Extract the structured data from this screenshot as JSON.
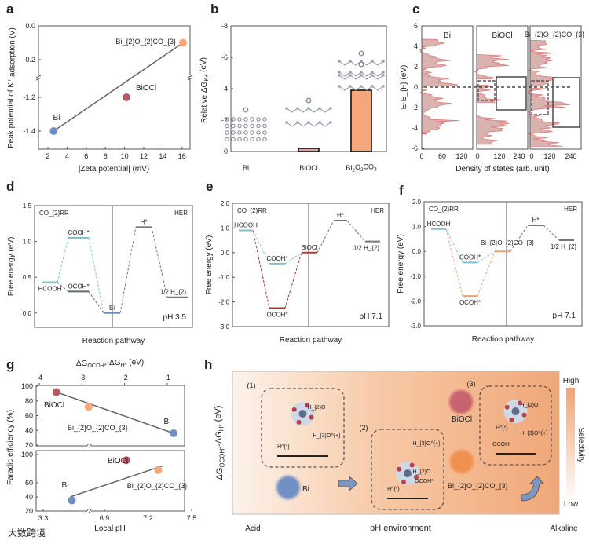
{
  "panel_labels": [
    "a",
    "b",
    "c",
    "d",
    "e",
    "f",
    "g",
    "h"
  ],
  "watermark": "大数跨境",
  "colors": {
    "Bi": "#6f8fc4",
    "BiOCl": "#b85a66",
    "Bi2O2CO3": "#f5a77a",
    "teal": "#7fc3d0",
    "red": "#b0302f",
    "orange": "#f0a070",
    "gray": "#666666",
    "accent": "#f2a777"
  },
  "chart_data": [
    {
      "id": "a",
      "type": "scatter",
      "xlabel": "|Zeta potential| (mV)",
      "ylabel": "Peak potential of K^{+} adsorption (V)",
      "xlim": [
        1,
        17
      ],
      "xticks": [
        2,
        4,
        6,
        8,
        10,
        12,
        14,
        16
      ],
      "ylim": [
        -1.5,
        0.0
      ],
      "yticks": [
        "0.0",
        "-0.2",
        "-1.2",
        "-1.4"
      ],
      "y_axis_break": [
        -0.3,
        -1.1
      ],
      "points": [
        {
          "label": "Bi",
          "x": 2.6,
          "y": -1.4
        },
        {
          "label": "BiOCl",
          "x": 10.2,
          "y": -1.2
        },
        {
          "label": "Bi_{2}O_{2}CO_{3}",
          "x": 16.1,
          "y": -0.1
        }
      ],
      "fit_line": [
        [
          2.6,
          -1.4
        ],
        [
          16.1,
          -0.1
        ]
      ]
    },
    {
      "id": "b",
      "type": "bar",
      "ylabel": "Relative ΔG_{K+} (eV)",
      "ylim": [
        0,
        -8
      ],
      "yticks": [
        "0",
        "-2",
        "-4",
        "-6",
        "-8"
      ],
      "categories": [
        "Bi",
        "BiOCl",
        "Bi_{2}O_{2}CO_{3}"
      ],
      "values": [
        0,
        -0.2,
        -3.9
      ]
    },
    {
      "id": "c",
      "type": "area",
      "ylabel": "E-E_{F} (eV)",
      "xlabel": "Density of states (arb. unit)",
      "ylim": [
        -6,
        6
      ],
      "yticks": [
        "-6",
        "-4",
        "-2",
        "0",
        "2",
        "4",
        "6"
      ],
      "subplots": [
        {
          "title": "Bi",
          "xticks": [
            "0",
            "60",
            "120"
          ],
          "bands": [
            [
              -4.6,
              -0.2
            ],
            [
              0.1,
              4.7
            ]
          ]
        },
        {
          "title": "BiOCl",
          "xticks": [
            "0",
            "120",
            "240"
          ],
          "bands": [
            [
              -5.6,
              -2.8
            ],
            [
              -1.5,
              0.2
            ],
            [
              0.8,
              3.2
            ]
          ]
        },
        {
          "title": "Bi_{2}O_{2}CO_{3}",
          "xticks": [
            "0",
            "120",
            "240"
          ],
          "bands": [
            [
              -5.8,
              -0.1
            ],
            [
              0.1,
              4.6
            ]
          ]
        }
      ]
    },
    {
      "id": "d",
      "type": "line",
      "xlabel": "Reaction pathway",
      "ylabel": "Free energy (eV)",
      "ylim": [
        -0.2,
        1.5
      ],
      "yticks": [
        "0.0",
        "0.5",
        "1.0",
        "1.5"
      ],
      "left_title": "CO_{2}RR",
      "right_title": "HER",
      "note": "pH 3.5",
      "levels": [
        {
          "label": "HCOOH",
          "value": 0.43,
          "step": 0
        },
        {
          "label": "COOH*",
          "value": 1.05,
          "step": 1
        },
        {
          "label": "OCOH*",
          "value": 0.3,
          "step": 1
        },
        {
          "label": "Bi",
          "value": 0.0,
          "step": 2
        },
        {
          "label": "H*",
          "value": 1.2,
          "step": 3
        },
        {
          "label": "1/2 H_{2}",
          "value": 0.22,
          "step": 4
        }
      ]
    },
    {
      "id": "e",
      "type": "line",
      "xlabel": "Reaction pathway",
      "ylabel": "Free energy (eV)",
      "ylim": [
        -3.0,
        2.0
      ],
      "yticks": [
        "-3.0",
        "-2.0",
        "-1.0",
        "0.0",
        "1.0",
        "2.0"
      ],
      "left_title": "CO_{2}RR",
      "right_title": "HER",
      "note": "pH 7.1",
      "levels": [
        {
          "label": "HCOOH",
          "value": 0.9,
          "step": 0
        },
        {
          "label": "COOH*",
          "value": -0.45,
          "step": 1
        },
        {
          "label": "OCOH*",
          "value": -2.25,
          "step": 1
        },
        {
          "label": "BiOCl",
          "value": 0.0,
          "step": 2
        },
        {
          "label": "H*",
          "value": 1.3,
          "step": 3
        },
        {
          "label": "1/2 H_{2}",
          "value": 0.45,
          "step": 4
        }
      ]
    },
    {
      "id": "f",
      "type": "line",
      "xlabel": "Reaction pathway",
      "ylabel": "Free energy (eV)",
      "ylim": [
        -3.0,
        2.0
      ],
      "yticks": [
        "-3.0",
        "-2.0",
        "-1.0",
        "0.0",
        "1.0",
        "2.0"
      ],
      "left_title": "CO_{2}RR",
      "right_title": "HER",
      "note": "pH 7.1",
      "levels": [
        {
          "label": "HCOOH",
          "value": 0.9,
          "step": 0
        },
        {
          "label": "COOH*",
          "value": -0.45,
          "step": 1
        },
        {
          "label": "OCOH*",
          "value": -1.8,
          "step": 1
        },
        {
          "label": "Bi_{2}O_{2}CO_{3}",
          "value": 0.0,
          "step": 2
        },
        {
          "label": "H*",
          "value": 1.05,
          "step": 3
        },
        {
          "label": "1/2 H_{2}",
          "value": 0.45,
          "step": 4
        }
      ]
    },
    {
      "id": "g",
      "type": "scatter",
      "ylabel": "Faradic efficiency (%)",
      "top": {
        "xlabel": "ΔG_{OCOH*}-ΔG_{H*} (eV)",
        "xticks": [
          "-4",
          "-3",
          "-2",
          "-1"
        ],
        "yticks": [
          "20",
          "40",
          "60",
          "80",
          "100"
        ],
        "points": [
          {
            "label": "BiOCl",
            "x": -3.6,
            "y": 92
          },
          {
            "label": "Bi_{2}O_{2}CO_{3}",
            "x": -2.84,
            "y": 72
          },
          {
            "label": "Bi",
            "x": -0.85,
            "y": 36
          }
        ],
        "fit_line": [
          [
            -3.6,
            92
          ],
          [
            -0.85,
            36
          ]
        ]
      },
      "bottom": {
        "xlabel": "Local pH",
        "xticks": [
          "3.3",
          "6.9",
          "7.2",
          "7.5"
        ],
        "yticks": [
          "20",
          "40",
          "60",
          "80",
          "100"
        ],
        "points": [
          {
            "label": "Bi",
            "x": 5.0,
            "y": 35
          },
          {
            "label": "BiOCl",
            "x": 7.05,
            "y": 92
          },
          {
            "label": "Bi_{2}O_{2}CO_{3}",
            "x": 7.27,
            "y": 78
          }
        ],
        "fit_line": [
          [
            4.9,
            40
          ],
          [
            7.3,
            84
          ]
        ]
      }
    },
    {
      "id": "h",
      "type": "diagram",
      "ylabel": "ΔG_{OCOH*}-ΔG_{H*} (eV)",
      "xlabel": "pH environment",
      "x_left": "Acid",
      "x_right": "Alkaline",
      "colorbar": {
        "title": "Selectivity",
        "high": "High",
        "low": "Low"
      },
      "markers": [
        {
          "label": "Bi"
        },
        {
          "label": "BiOCl"
        },
        {
          "label": "Bi_{2}O_{2}CO_{3}"
        }
      ],
      "insets": [
        {
          "label": "(1)",
          "species": [
            "H_{2}O",
            "H_{3}O^{+}",
            "H^{*}"
          ]
        },
        {
          "label": "(2)",
          "species": [
            "H_{3}O^{+}",
            "H_{2}O",
            "H^{*}",
            "OCOH*"
          ]
        },
        {
          "label": "(3)",
          "species": [
            "H_{3}O^{+}",
            "H_{2}O",
            "OCOH*",
            "H^{*}"
          ]
        }
      ]
    }
  ]
}
